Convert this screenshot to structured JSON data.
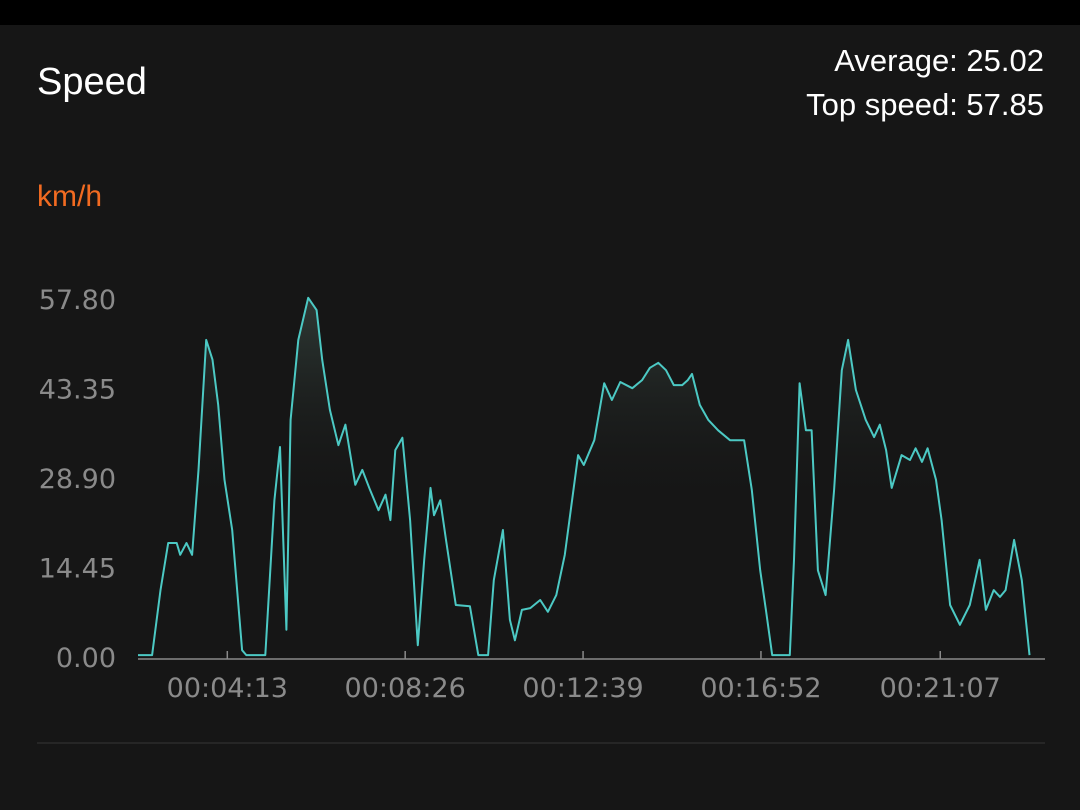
{
  "chart_data": {
    "type": "line",
    "title": "Speed",
    "average_label": "Average: 25.02",
    "top_speed_label": "Top speed: 57.85",
    "y_axis_label": "km/h",
    "color": "#4cc9c4",
    "xlim": [
      126,
      1416
    ],
    "xticks": [
      {
        "value": 253,
        "label": "00:04:13"
      },
      {
        "value": 506,
        "label": "00:08:26"
      },
      {
        "value": 759,
        "label": "00:12:39"
      },
      {
        "value": 1012,
        "label": "00:16:52"
      },
      {
        "value": 1267,
        "label": "00:21:07"
      }
    ],
    "ylim": [
      0,
      57.8
    ],
    "yticks": [
      {
        "value": 0,
        "label": "0.00"
      },
      {
        "value": 14.45,
        "label": "14.45"
      },
      {
        "value": 28.9,
        "label": "28.90"
      },
      {
        "value": 43.35,
        "label": "43.35"
      },
      {
        "value": 57.8,
        "label": "57.80"
      }
    ],
    "x": [
      126,
      146,
      158,
      169,
      181,
      186,
      195,
      203,
      212,
      223,
      232,
      240,
      249,
      260,
      274,
      280,
      307,
      320,
      328,
      337,
      343,
      354,
      368,
      380,
      388,
      399,
      411,
      421,
      435,
      445,
      456,
      468,
      478,
      485,
      492,
      502,
      513,
      524,
      533,
      542,
      547,
      556,
      564,
      578,
      598,
      610,
      624,
      632,
      645,
      655,
      662,
      672,
      684,
      698,
      709,
      721,
      733,
      752,
      760,
      775,
      789,
      800,
      812,
      829,
      843,
      854,
      866,
      877,
      888,
      900,
      908,
      914,
      925,
      937,
      951,
      968,
      988,
      999,
      1011,
      1019,
      1028,
      1053,
      1059,
      1067,
      1076,
      1084,
      1093,
      1104,
      1116,
      1127,
      1136,
      1147,
      1161,
      1173,
      1181,
      1190,
      1198,
      1212,
      1224,
      1232,
      1241,
      1249,
      1261,
      1269,
      1281,
      1295,
      1309,
      1323,
      1332,
      1343,
      1352,
      1360,
      1372,
      1383,
      1394
    ],
    "series": [
      {
        "name": "Speed",
        "color": "#4cc9c4",
        "values": [
          0.3,
          0.3,
          10.8,
          18.4,
          18.4,
          16.5,
          18.4,
          16.5,
          30.2,
          51.2,
          48,
          40.7,
          28.6,
          20.5,
          1.1,
          0.3,
          0.3,
          25.3,
          33.9,
          4.4,
          38.3,
          51.2,
          58,
          56,
          48,
          39.9,
          34.2,
          37.5,
          27.8,
          30.2,
          27,
          23.7,
          26.2,
          22.1,
          33.4,
          35.4,
          22.1,
          1.9,
          15.7,
          27.3,
          22.9,
          25.3,
          18.9,
          8.4,
          8.2,
          0.3,
          0.3,
          12.4,
          20.5,
          6,
          2.7,
          7.6,
          7.9,
          9.2,
          7.3,
          10,
          16.5,
          32.6,
          31,
          35,
          44.2,
          41.5,
          44.4,
          43.4,
          44.7,
          46.7,
          47.5,
          46.3,
          43.9,
          43.9,
          44.7,
          45.7,
          40.7,
          38.3,
          36.6,
          35,
          35,
          27,
          14,
          7.6,
          0.3,
          0.3,
          15.7,
          44.2,
          36.6,
          36.6,
          14,
          10,
          27,
          46.3,
          51.2,
          43.1,
          38.3,
          35.5,
          37.5,
          33.4,
          27.3,
          32.6,
          31.8,
          33.7,
          31.5,
          33.7,
          28.6,
          22.1,
          8.4,
          5.2,
          8.4,
          15.7,
          7.6,
          10.8,
          9.7,
          10.8,
          18.9,
          12.4,
          0.3
        ]
      }
    ]
  }
}
